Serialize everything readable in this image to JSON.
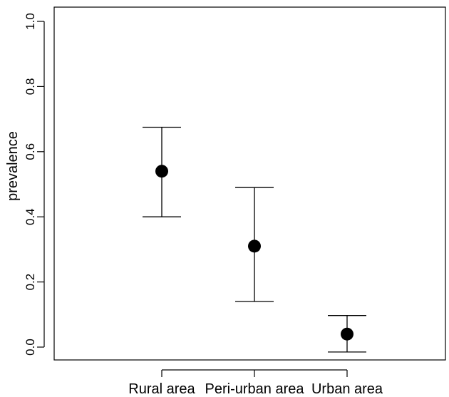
{
  "chart_data": {
    "type": "scatter",
    "title": "",
    "xlabel": "",
    "ylabel": "prevalence",
    "ylim": [
      -0.04,
      1.04
    ],
    "yticks": [
      0.0,
      0.2,
      0.4,
      0.6,
      0.8,
      1.0
    ],
    "ytick_labels": [
      "0.0",
      "0.2",
      "0.4",
      "0.6",
      "0.8",
      "1.0"
    ],
    "grid": false,
    "legend": "none",
    "categories": [
      "Rural area",
      "Peri-urban area",
      "Urban area"
    ],
    "series": [
      {
        "values": [
          0.54,
          0.31,
          0.04
        ],
        "lower": [
          0.4,
          0.14,
          -0.015
        ],
        "upper": [
          0.675,
          0.49,
          0.097
        ]
      }
    ],
    "colors": {
      "marker": "#000000",
      "errorbar": "#000000",
      "axis": "#000000"
    }
  }
}
